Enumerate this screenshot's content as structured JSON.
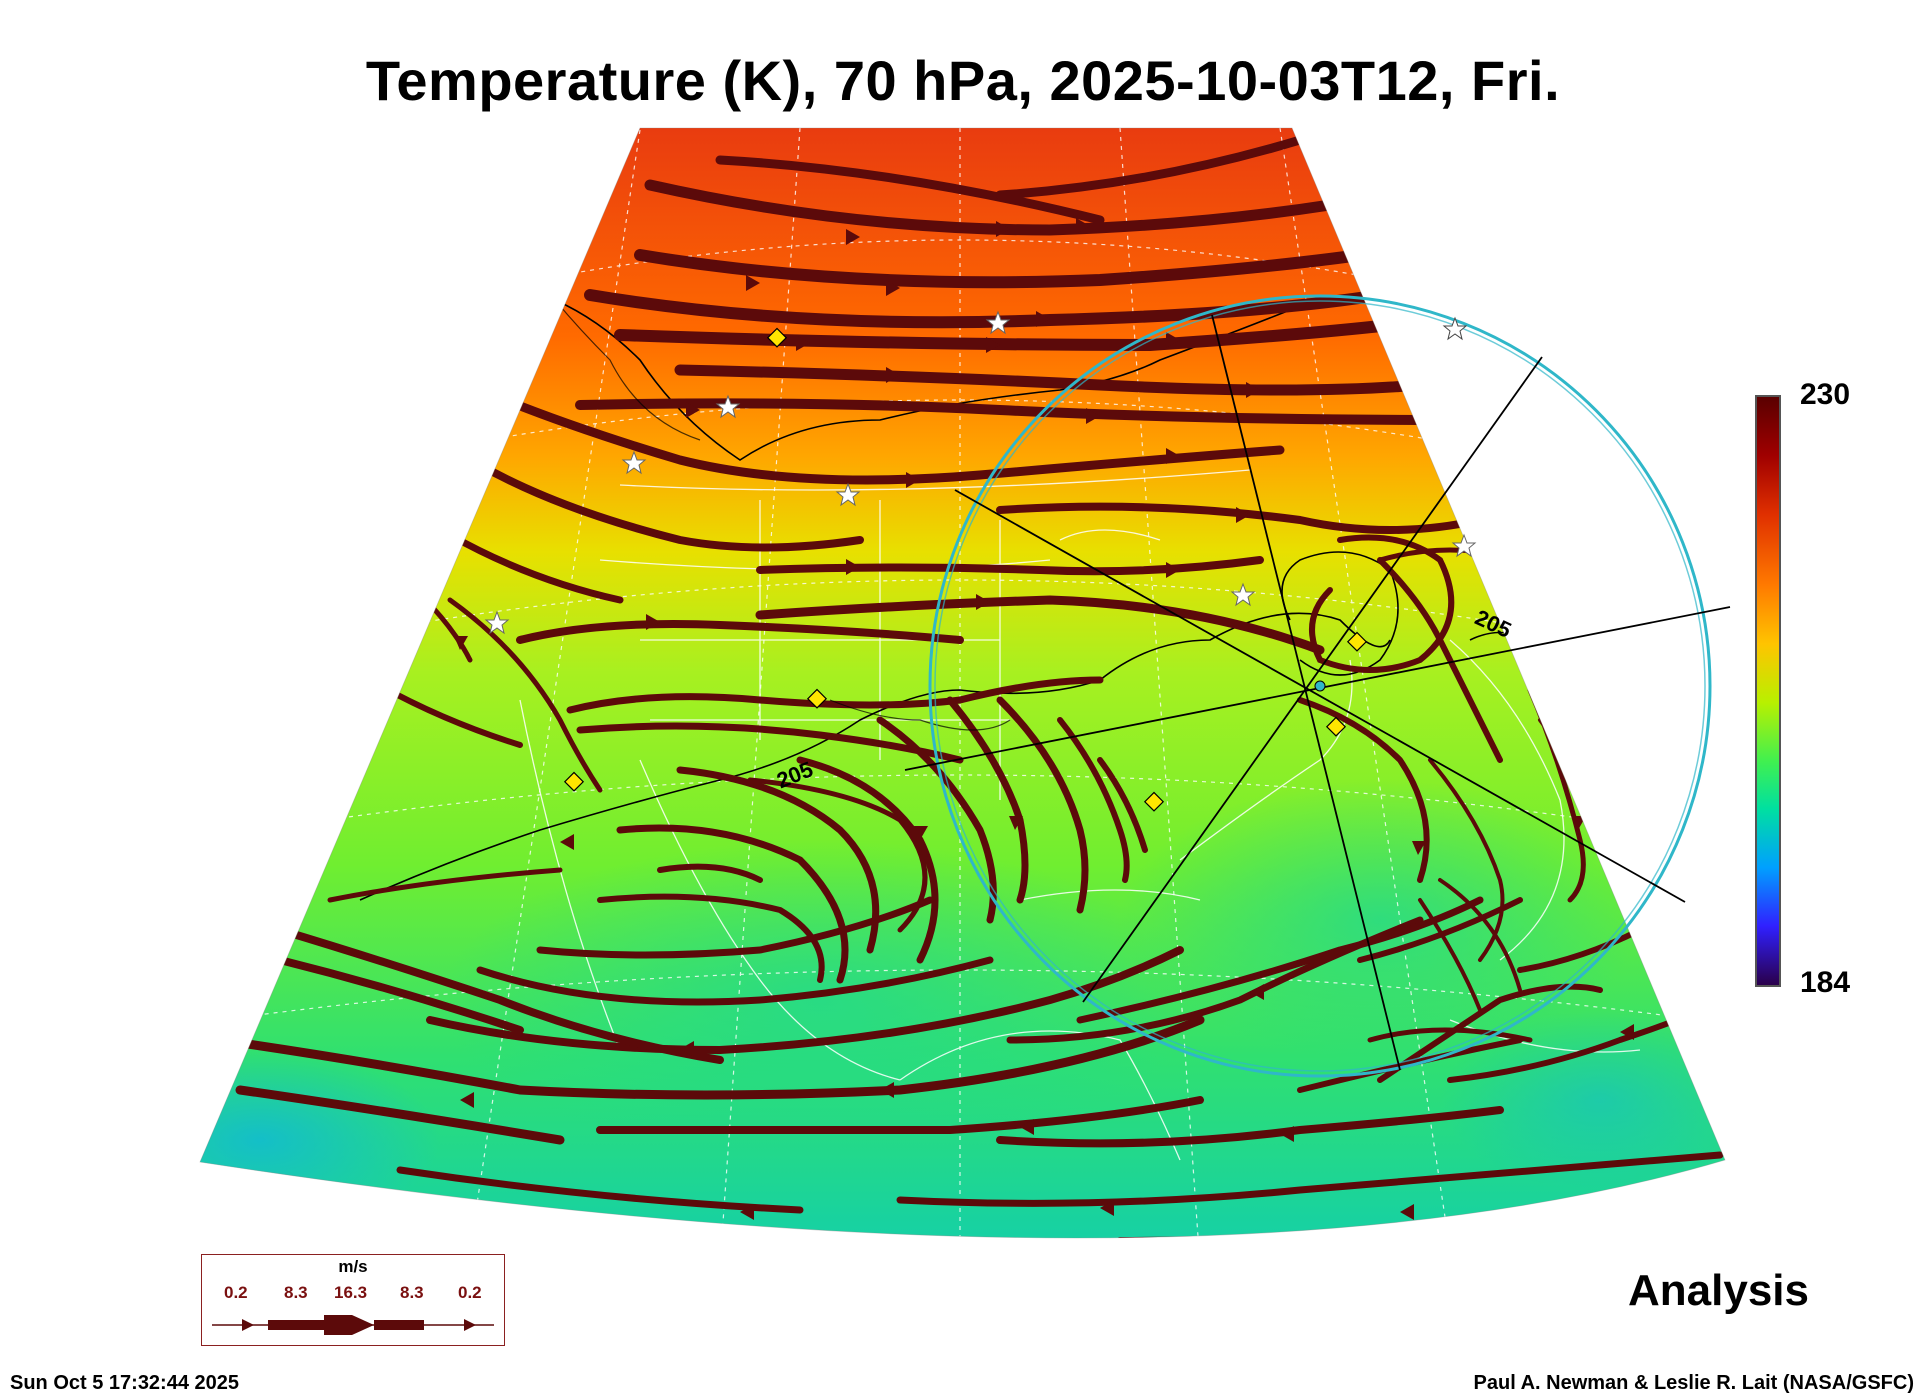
{
  "title": "Temperature (K), 70 hPa, 2025-10-03T12, Fri.",
  "colorbar": {
    "max": "230",
    "min": "184",
    "colors": [
      "#5a0000",
      "#a00000",
      "#e03000",
      "#ff7a00",
      "#ffc400",
      "#b8f000",
      "#40f050",
      "#00e0a0",
      "#00a0ff",
      "#3020ff",
      "#2a004a"
    ]
  },
  "contour_labels": [
    "205",
    "205"
  ],
  "analysis_label": "Analysis",
  "timestamp": "Sun Oct  5 17:32:44 2025",
  "credit": "Paul A. Newman & Leslie R. Lait (NASA/GSFC)",
  "wind_legend": {
    "unit": "m/s",
    "values": [
      "0.2",
      "8.3",
      "16.3",
      "8.3",
      "0.2"
    ]
  },
  "streamline_color": "#5c0a0a",
  "range_ring_color": "#2fb7c9",
  "marker_color": "#ffe600"
}
